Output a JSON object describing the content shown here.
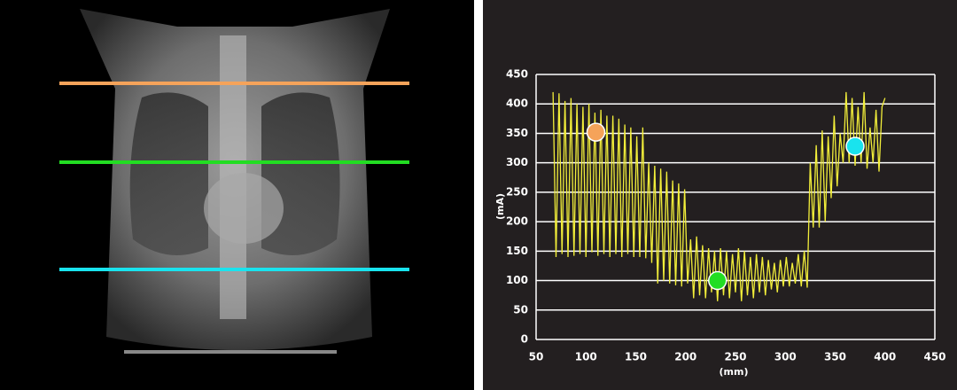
{
  "chart_data": {
    "type": "line",
    "x_label": "(mm)",
    "y_label": "(mA)",
    "xlim": [
      50,
      450
    ],
    "xticks": [
      50,
      100,
      150,
      200,
      250,
      300,
      350,
      400,
      450
    ],
    "ylim": [
      0,
      450
    ],
    "yticks": [
      0,
      50,
      100,
      150,
      200,
      250,
      300,
      350,
      400,
      450
    ],
    "grid": true,
    "x": [
      67,
      70,
      73,
      76,
      79,
      82,
      85,
      88,
      91,
      94,
      97,
      100,
      103,
      106,
      109,
      112,
      115,
      118,
      121,
      124,
      127,
      130,
      133,
      136,
      139,
      142,
      145,
      148,
      151,
      154,
      157,
      160,
      163,
      166,
      169,
      172,
      175,
      178,
      181,
      184,
      187,
      190,
      193,
      196,
      199,
      202,
      205,
      208,
      211,
      214,
      217,
      220,
      223,
      226,
      229,
      232,
      235,
      238,
      241,
      244,
      247,
      250,
      253,
      256,
      259,
      262,
      265,
      268,
      271,
      274,
      277,
      280,
      283,
      286,
      289,
      292,
      295,
      298,
      301,
      304,
      307,
      310,
      313,
      316,
      319,
      322,
      325,
      328,
      331,
      334,
      337,
      340,
      343,
      346,
      349,
      352,
      355,
      358,
      361,
      364,
      367,
      370,
      373,
      376,
      379,
      382,
      385,
      388,
      391,
      394,
      397,
      400
    ],
    "series": [
      {
        "color": "#f2ee3a",
        "values": [
          420,
          140,
          418,
          145,
          405,
          140,
          410,
          142,
          400,
          145,
          395,
          140,
          400,
          148,
          385,
          142,
          390,
          145,
          380,
          140,
          380,
          145,
          375,
          140,
          365,
          145,
          360,
          140,
          345,
          140,
          360,
          138,
          300,
          130,
          295,
          95,
          290,
          100,
          285,
          95,
          270,
          92,
          265,
          90,
          255,
          95,
          170,
          70,
          175,
          75,
          160,
          70,
          155,
          80,
          150,
          65,
          155,
          75,
          150,
          70,
          145,
          80,
          155,
          65,
          150,
          75,
          140,
          70,
          145,
          80,
          140,
          75,
          135,
          85,
          130,
          80,
          135,
          90,
          140,
          90,
          130,
          95,
          145,
          90,
          150,
          88,
          300,
          190,
          330,
          190,
          355,
          200,
          345,
          240,
          380,
          260,
          350,
          300,
          420,
          300,
          410,
          295,
          395,
          300,
          420,
          290,
          360,
          300,
          390,
          285,
          395,
          410
        ]
      }
    ],
    "points": [
      {
        "x": 110,
        "y": 352,
        "color": "#f5a35a"
      },
      {
        "x": 232,
        "y": 100,
        "color": "#22dd22"
      },
      {
        "x": 370,
        "y": 328,
        "color": "#19e3ee"
      }
    ]
  }
}
